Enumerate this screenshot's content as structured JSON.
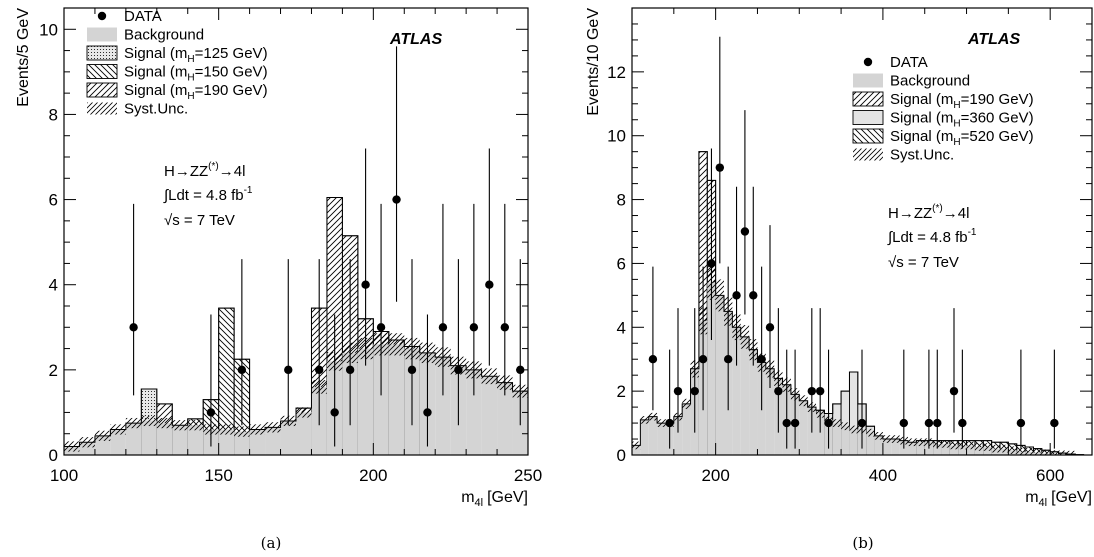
{
  "chart_data": [
    {
      "type": "bar",
      "caption": "(a)",
      "experiment": "ATLAS",
      "xlabel": "m4l [GeV]",
      "xlabel_main": "m",
      "xlabel_sub": "4l",
      "xlabel_unit": "[GeV]",
      "ylabel": "Events/5 GeV",
      "xlim": [
        100,
        250
      ],
      "ylim": [
        0,
        10.5
      ],
      "xticks": [
        100,
        150,
        200,
        250
      ],
      "yticks": [
        0,
        2,
        4,
        6,
        8,
        10
      ],
      "annotations": {
        "process": "H→ZZ(*)→4l",
        "process_main": "H→ZZ",
        "process_sup": "(*)",
        "process_tail": "→4l",
        "lumi": "∫Ldt = 4.8 fb-1",
        "lumi_main": "∫Ldt = 4.8 fb",
        "lumi_sup": "-1",
        "energy": "√s = 7 TeV"
      },
      "legend": {
        "position": "top-left",
        "entries": [
          {
            "label": "DATA",
            "style": "marker"
          },
          {
            "label": "Background",
            "style": "gray"
          },
          {
            "label": "Signal (mH=125 GeV)",
            "pre": "Signal (m",
            "sub": "H",
            "post": "=125 GeV)",
            "style": "dots"
          },
          {
            "label": "Signal (mH=150 GeV)",
            "pre": "Signal (m",
            "sub": "H",
            "post": "=150 GeV)",
            "style": "back"
          },
          {
            "label": "Signal (mH=190 GeV)",
            "pre": "Signal (m",
            "sub": "H",
            "post": "=190 GeV)",
            "style": "fwd"
          },
          {
            "label": "Syst.Unc.",
            "style": "syst"
          }
        ]
      },
      "bin_width": 5,
      "bin_start": 100,
      "background": [
        0.2,
        0.3,
        0.45,
        0.6,
        0.75,
        0.8,
        0.75,
        0.7,
        0.7,
        0.6,
        0.6,
        0.55,
        0.6,
        0.65,
        0.8,
        1.0,
        1.6,
        2.2,
        2.4,
        2.5,
        2.6,
        2.6,
        2.5,
        2.4,
        2.3,
        2.1,
        2.0,
        1.85,
        1.7,
        1.5
      ],
      "signal_total": [
        0.2,
        0.3,
        0.45,
        0.6,
        0.75,
        1.55,
        1.2,
        0.7,
        0.85,
        1.3,
        3.45,
        2.25,
        0.6,
        0.65,
        0.8,
        1.1,
        3.45,
        6.05,
        5.15,
        3.2,
        2.9,
        2.7,
        2.55,
        2.4,
        2.3,
        2.1,
        2.0,
        1.85,
        1.7,
        1.5
      ],
      "data_points": [
        {
          "x": 122.5,
          "y": 3,
          "err": [
            1.6,
            2.9
          ]
        },
        {
          "x": 147.5,
          "y": 1,
          "err": [
            0.8,
            2.3
          ]
        },
        {
          "x": 157.5,
          "y": 2,
          "err": [
            1.3,
            2.6
          ]
        },
        {
          "x": 172.5,
          "y": 2,
          "err": [
            1.3,
            2.6
          ]
        },
        {
          "x": 182.5,
          "y": 2,
          "err": [
            1.3,
            2.6
          ]
        },
        {
          "x": 187.5,
          "y": 1,
          "err": [
            0.8,
            2.3
          ]
        },
        {
          "x": 192.5,
          "y": 2,
          "err": [
            1.3,
            2.6
          ]
        },
        {
          "x": 197.5,
          "y": 4,
          "err": [
            1.9,
            3.2
          ]
        },
        {
          "x": 202.5,
          "y": 3,
          "err": [
            1.6,
            2.9
          ]
        },
        {
          "x": 207.5,
          "y": 6,
          "err": [
            2.4,
            3.6
          ]
        },
        {
          "x": 212.5,
          "y": 2,
          "err": [
            1.3,
            2.6
          ]
        },
        {
          "x": 217.5,
          "y": 1,
          "err": [
            0.8,
            2.3
          ]
        },
        {
          "x": 222.5,
          "y": 3,
          "err": [
            1.6,
            2.9
          ]
        },
        {
          "x": 227.5,
          "y": 2,
          "err": [
            1.3,
            2.6
          ]
        },
        {
          "x": 232.5,
          "y": 3,
          "err": [
            1.6,
            2.9
          ]
        },
        {
          "x": 237.5,
          "y": 4,
          "err": [
            1.9,
            3.2
          ]
        },
        {
          "x": 242.5,
          "y": 3,
          "err": [
            1.6,
            2.9
          ]
        },
        {
          "x": 247.5,
          "y": 2,
          "err": [
            1.3,
            2.6
          ]
        }
      ]
    },
    {
      "type": "bar",
      "caption": "(b)",
      "experiment": "ATLAS",
      "xlabel": "m4l [GeV]",
      "xlabel_main": "m",
      "xlabel_sub": "4l",
      "xlabel_unit": "[GeV]",
      "ylabel": "Events/10 GeV",
      "xlim": [
        100,
        650
      ],
      "ylim": [
        0,
        14
      ],
      "xticks": [
        200,
        400,
        600
      ],
      "yticks": [
        0,
        2,
        4,
        6,
        8,
        10,
        12
      ],
      "annotations": {
        "process": "H→ZZ(*)→4l",
        "process_main": "H→ZZ",
        "process_sup": "(*)",
        "process_tail": "→4l",
        "lumi": "∫Ldt = 4.8 fb-1",
        "lumi_main": "∫Ldt = 4.8 fb",
        "lumi_sup": "-1",
        "energy": "√s = 7 TeV"
      },
      "legend": {
        "position": "top-right",
        "entries": [
          {
            "label": "DATA",
            "style": "marker"
          },
          {
            "label": "Background",
            "style": "gray"
          },
          {
            "label": "Signal (mH=190 GeV)",
            "pre": "Signal (m",
            "sub": "H",
            "post": "=190 GeV)",
            "style": "fwd"
          },
          {
            "label": "Signal (mH=360 GeV)",
            "pre": "Signal (m",
            "sub": "H",
            "post": "=360 GeV)",
            "style": "light"
          },
          {
            "label": "Signal (mH=520 GeV)",
            "pre": "Signal (m",
            "sub": "H",
            "post": "=520 GeV)",
            "style": "back"
          },
          {
            "label": "Syst.Unc.",
            "style": "syst"
          }
        ]
      },
      "bin_width": 10,
      "bin_start": 100,
      "background": [
        0.3,
        1.1,
        1.2,
        1.0,
        1.0,
        1.2,
        1.6,
        2.7,
        4.2,
        5.4,
        5.0,
        4.5,
        4.0,
        3.7,
        3.3,
        2.9,
        2.7,
        2.4,
        2.2,
        1.9,
        1.7,
        1.5,
        1.3,
        1.1,
        1.0,
        0.9,
        0.8,
        0.8,
        0.7,
        0.6,
        0.5,
        0.5,
        0.45,
        0.4,
        0.4,
        0.4,
        0.35,
        0.35,
        0.3,
        0.3,
        0.3,
        0.25,
        0.25,
        0.2,
        0.2,
        0.15,
        0.1,
        0.1,
        0.08,
        0.05,
        0.03,
        0.02,
        0.01,
        0.0,
        0.0
      ],
      "signal_total": [
        0.3,
        1.1,
        1.2,
        1.0,
        1.0,
        1.2,
        1.6,
        2.7,
        9.5,
        8.6,
        5.0,
        4.5,
        4.0,
        3.7,
        3.3,
        2.9,
        2.7,
        2.4,
        2.2,
        1.9,
        1.7,
        1.5,
        1.4,
        1.3,
        1.6,
        2.0,
        2.6,
        1.6,
        0.9,
        0.6,
        0.5,
        0.5,
        0.45,
        0.4,
        0.45,
        0.45,
        0.45,
        0.45,
        0.45,
        0.45,
        0.45,
        0.45,
        0.45,
        0.4,
        0.4,
        0.35,
        0.3,
        0.25,
        0.2,
        0.15,
        0.1,
        0.06,
        0.03,
        0.01,
        0.0
      ],
      "data_points": [
        {
          "x": 125,
          "y": 3,
          "err": [
            1.6,
            2.9
          ]
        },
        {
          "x": 145,
          "y": 1,
          "err": [
            0.8,
            2.3
          ]
        },
        {
          "x": 155,
          "y": 2,
          "err": [
            1.3,
            2.6
          ]
        },
        {
          "x": 175,
          "y": 2,
          "err": [
            1.3,
            2.6
          ]
        },
        {
          "x": 185,
          "y": 3,
          "err": [
            1.6,
            2.9
          ]
        },
        {
          "x": 195,
          "y": 6,
          "err": [
            2.4,
            3.6
          ]
        },
        {
          "x": 205,
          "y": 9,
          "err": [
            3.0,
            4.1
          ]
        },
        {
          "x": 215,
          "y": 3,
          "err": [
            1.6,
            2.9
          ]
        },
        {
          "x": 225,
          "y": 5,
          "err": [
            2.2,
            3.4
          ]
        },
        {
          "x": 235,
          "y": 7,
          "err": [
            2.6,
            3.8
          ]
        },
        {
          "x": 245,
          "y": 5,
          "err": [
            2.2,
            3.4
          ]
        },
        {
          "x": 255,
          "y": 3,
          "err": [
            1.6,
            2.9
          ]
        },
        {
          "x": 265,
          "y": 4,
          "err": [
            1.9,
            3.2
          ]
        },
        {
          "x": 275,
          "y": 2,
          "err": [
            1.3,
            2.6
          ]
        },
        {
          "x": 285,
          "y": 1,
          "err": [
            0.8,
            2.3
          ]
        },
        {
          "x": 295,
          "y": 1,
          "err": [
            0.8,
            2.3
          ]
        },
        {
          "x": 315,
          "y": 2,
          "err": [
            1.3,
            2.6
          ]
        },
        {
          "x": 325,
          "y": 2,
          "err": [
            1.3,
            2.6
          ]
        },
        {
          "x": 335,
          "y": 1,
          "err": [
            0.8,
            2.3
          ]
        },
        {
          "x": 375,
          "y": 1,
          "err": [
            0.8,
            2.3
          ]
        },
        {
          "x": 425,
          "y": 1,
          "err": [
            0.8,
            2.3
          ]
        },
        {
          "x": 455,
          "y": 1,
          "err": [
            0.8,
            2.3
          ]
        },
        {
          "x": 465,
          "y": 1,
          "err": [
            0.8,
            2.3
          ]
        },
        {
          "x": 485,
          "y": 2,
          "err": [
            1.3,
            2.6
          ]
        },
        {
          "x": 495,
          "y": 1,
          "err": [
            0.8,
            2.3
          ]
        },
        {
          "x": 565,
          "y": 1,
          "err": [
            0.8,
            2.3
          ]
        },
        {
          "x": 605,
          "y": 1,
          "err": [
            0.8,
            2.3
          ]
        }
      ]
    }
  ],
  "colors": {
    "background_fill": "#d4d4d4",
    "signal_light_fill": "#e4e4e4",
    "ink": "#000000"
  }
}
